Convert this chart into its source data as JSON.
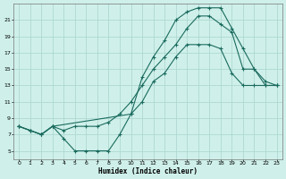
{
  "xlabel": "Humidex (Indice chaleur)",
  "background_color": "#cff0ea",
  "grid_color": "#aed8d2",
  "line_color": "#1a6b5e",
  "ylim": [
    4,
    23
  ],
  "xlim": [
    -0.5,
    23.5
  ],
  "yticks": [
    5,
    7,
    9,
    11,
    13,
    15,
    17,
    19,
    21
  ],
  "xticks": [
    0,
    1,
    2,
    3,
    4,
    5,
    6,
    7,
    8,
    9,
    10,
    11,
    12,
    13,
    14,
    15,
    16,
    17,
    18,
    19,
    20,
    21,
    22,
    23
  ],
  "series1_x": [
    0,
    1,
    2,
    3,
    4,
    5,
    6,
    7,
    8,
    9,
    10,
    11,
    12,
    13,
    14,
    15,
    16,
    17,
    18,
    19,
    20,
    21,
    22,
    23
  ],
  "series1_y": [
    8,
    7.5,
    7.0,
    8.0,
    6.5,
    5.0,
    5.0,
    5.0,
    5.0,
    7.0,
    9.5,
    11.0,
    13.5,
    14.5,
    16.5,
    18.0,
    18.0,
    18.0,
    17.5,
    14.5,
    13.0,
    13.0,
    13.0,
    13.0
  ],
  "series2_x": [
    0,
    1,
    2,
    3,
    4,
    5,
    6,
    7,
    8,
    9,
    10,
    11,
    12,
    13,
    14,
    15,
    16,
    17,
    18,
    19,
    20,
    21,
    22,
    23
  ],
  "series2_y": [
    8,
    7.5,
    7.0,
    8.0,
    7.5,
    8.0,
    8.0,
    8.0,
    8.5,
    9.5,
    11.0,
    13.0,
    15.0,
    16.5,
    18.0,
    20.0,
    21.5,
    21.5,
    20.5,
    19.5,
    15.0,
    15.0,
    13.5,
    13.0
  ],
  "series3_x": [
    0,
    1,
    2,
    3,
    10,
    11,
    12,
    13,
    14,
    15,
    16,
    17,
    18,
    19,
    20,
    21,
    22,
    23
  ],
  "series3_y": [
    8,
    7.5,
    7.0,
    8.0,
    9.5,
    14.0,
    16.5,
    18.5,
    21.0,
    22.0,
    22.5,
    22.5,
    22.5,
    20.0,
    17.5,
    15.0,
    13.0,
    13.0
  ]
}
